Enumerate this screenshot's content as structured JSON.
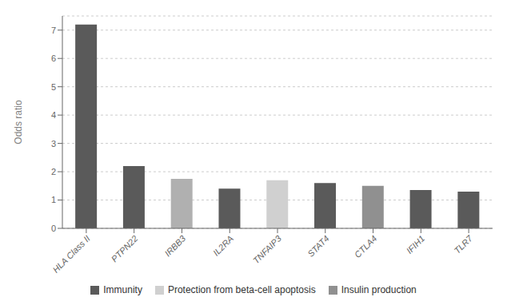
{
  "chart_data": {
    "type": "bar",
    "categories": [
      "HLA Class II",
      "PTPN22",
      "IRBB3",
      "IL2RA",
      "TNFAIP3",
      "STAT4",
      "CTLA4",
      "IFIH1",
      "TLR7"
    ],
    "series": [
      {
        "name": "Immunity",
        "color": "#5a5a5a",
        "values": [
          7.2,
          2.2,
          null,
          1.4,
          null,
          1.6,
          null,
          1.35,
          1.3
        ]
      },
      {
        "name": "Protection from beta-cell apoptosis",
        "color": "#d0d0d0",
        "values": [
          null,
          null,
          null,
          null,
          1.7,
          null,
          null,
          null,
          null
        ]
      },
      {
        "name": "Insulin production",
        "color": "#909090",
        "values": [
          null,
          null,
          null,
          null,
          null,
          null,
          1.5,
          null,
          null
        ]
      },
      {
        "color": "#b0b0b0",
        "values": [
          null,
          null,
          1.75,
          null,
          null,
          null,
          null,
          null,
          null
        ]
      }
    ],
    "stacked": true,
    "ylabel": "Odds ratio",
    "ylim": [
      0,
      7.5
    ],
    "yticks": [
      0,
      1,
      2,
      3,
      4,
      5,
      6,
      7
    ],
    "grid": true
  }
}
